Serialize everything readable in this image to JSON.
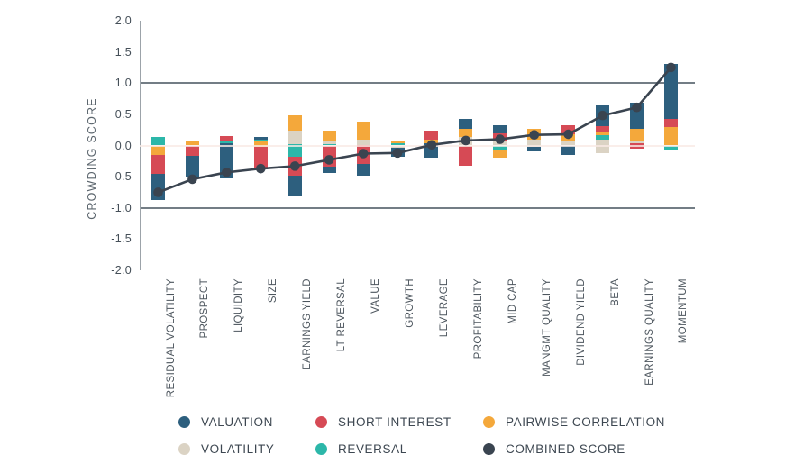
{
  "chart_data": {
    "type": "bar",
    "stacked": true,
    "title": "",
    "ylabel": "CROWDING SCORE",
    "ylim": [
      -2.0,
      2.0
    ],
    "grid_values": [
      1.0,
      -1.0
    ],
    "zero_value": 0,
    "yticks": [
      {
        "label": "2.0",
        "value": 2.0
      },
      {
        "label": "1.5",
        "value": 1.5
      },
      {
        "label": "1.0",
        "value": 1.0
      },
      {
        "label": "0.5",
        "value": 0.5
      },
      {
        "label": "0.0",
        "value": 0.0
      },
      {
        "label": "-0.5",
        "value": -0.5
      },
      {
        "label": "-1.0",
        "value": -1.0
      },
      {
        "label": "-1.5",
        "value": -1.5
      },
      {
        "label": "-2.0",
        "value": -2.0
      }
    ],
    "categories": [
      "RESIDUAL VOLATILITY",
      "PROSPECT",
      "LIQUIDITY",
      "SIZE",
      "EARNINGS YIELD",
      "LT REVERSAL",
      "VALUE",
      "GROWTH",
      "LEVERAGE",
      "PROFITABILITY",
      "MID CAP",
      "MANGMT QUALITY",
      "DIVIDEND YIELD",
      "BETA",
      "EARNINGS QUALITY",
      "MOMENTUM"
    ],
    "colors": {
      "valuation": "#2D5F7E",
      "short_interest": "#D64A55",
      "pairwise_correlation": "#F4A83B",
      "volatility": "#DBD3C4",
      "reversal": "#2CB7A9",
      "combined_score": "#3A4450"
    },
    "legend": [
      {
        "series": "valuation",
        "label": "VALUATION"
      },
      {
        "series": "short_interest",
        "label": "SHORT INTEREST"
      },
      {
        "series": "pairwise_correlation",
        "label": "PAIRWISE CORRELATION"
      },
      {
        "series": "volatility",
        "label": "VOLATILITY"
      },
      {
        "series": "reversal",
        "label": "REVERSAL"
      },
      {
        "series": "combined_score",
        "label": "COMBINED SCORE"
      }
    ],
    "bars": [
      {
        "category": "RESIDUAL VOLATILITY",
        "combined": -0.75,
        "segments": [
          [
            "valuation",
            -0.88,
            -0.46
          ],
          [
            "short_interest",
            -0.46,
            -0.15
          ],
          [
            "pairwise_correlation",
            -0.15,
            0.0
          ],
          [
            "reversal",
            0.0,
            0.14
          ]
        ]
      },
      {
        "category": "PROSPECT",
        "combined": -0.54,
        "segments": [
          [
            "valuation",
            -0.51,
            -0.17
          ],
          [
            "short_interest",
            -0.17,
            0.0
          ],
          [
            "pairwise_correlation",
            0.0,
            0.06
          ]
        ]
      },
      {
        "category": "LIQUIDITY",
        "combined": -0.43,
        "segments": [
          [
            "valuation",
            -0.52,
            0.03
          ],
          [
            "reversal",
            0.03,
            0.07
          ],
          [
            "short_interest",
            0.07,
            0.15
          ]
        ]
      },
      {
        "category": "SIZE",
        "combined": -0.37,
        "segments": [
          [
            "short_interest",
            -0.38,
            -0.02
          ],
          [
            "pairwise_correlation",
            -0.02,
            0.06
          ],
          [
            "reversal",
            0.06,
            0.09
          ],
          [
            "valuation",
            0.09,
            0.13
          ]
        ]
      },
      {
        "category": "EARNINGS YIELD",
        "combined": -0.33,
        "segments": [
          [
            "valuation",
            -0.8,
            -0.48
          ],
          [
            "short_interest",
            -0.48,
            -0.18
          ],
          [
            "reversal",
            -0.18,
            0.02
          ],
          [
            "volatility",
            0.02,
            0.24
          ],
          [
            "pairwise_correlation",
            0.24,
            0.48
          ]
        ]
      },
      {
        "category": "LT REVERSAL",
        "combined": -0.23,
        "segments": [
          [
            "valuation",
            -0.44,
            -0.34
          ],
          [
            "short_interest",
            -0.34,
            0.0
          ],
          [
            "reversal",
            0.0,
            0.02
          ],
          [
            "volatility",
            0.02,
            0.06
          ],
          [
            "pairwise_correlation",
            0.06,
            0.24
          ]
        ]
      },
      {
        "category": "VALUE",
        "combined": -0.13,
        "segments": [
          [
            "valuation",
            -0.48,
            -0.29
          ],
          [
            "short_interest",
            -0.29,
            0.01
          ],
          [
            "volatility",
            0.01,
            0.09
          ],
          [
            "pairwise_correlation",
            0.09,
            0.38
          ]
        ]
      },
      {
        "category": "GROWTH",
        "combined": -0.12,
        "segments": [
          [
            "valuation",
            -0.18,
            -0.04
          ],
          [
            "volatility",
            -0.04,
            0.0
          ],
          [
            "reversal",
            0.0,
            0.04
          ],
          [
            "pairwise_correlation",
            0.04,
            0.08
          ]
        ]
      },
      {
        "category": "LEVERAGE",
        "combined": 0.01,
        "segments": [
          [
            "valuation",
            -0.2,
            0.04
          ],
          [
            "pairwise_correlation",
            0.04,
            0.09
          ],
          [
            "short_interest",
            0.09,
            0.24
          ]
        ]
      },
      {
        "category": "PROFITABILITY",
        "combined": 0.08,
        "segments": [
          [
            "short_interest",
            -0.33,
            0.0
          ],
          [
            "volatility",
            0.0,
            0.14
          ],
          [
            "pairwise_correlation",
            0.14,
            0.27
          ],
          [
            "valuation",
            0.27,
            0.42
          ]
        ]
      },
      {
        "category": "MID CAP",
        "combined": 0.1,
        "segments": [
          [
            "pairwise_correlation",
            -0.2,
            -0.07
          ],
          [
            "reversal",
            -0.07,
            0.0
          ],
          [
            "volatility",
            0.0,
            0.06
          ],
          [
            "short_interest",
            0.06,
            0.19
          ],
          [
            "valuation",
            0.19,
            0.33
          ]
        ]
      },
      {
        "category": "MANGMT QUALITY",
        "combined": 0.17,
        "segments": [
          [
            "valuation",
            -0.1,
            -0.02
          ],
          [
            "volatility",
            -0.02,
            0.09
          ],
          [
            "pairwise_correlation",
            0.09,
            0.26
          ]
        ]
      },
      {
        "category": "DIVIDEND YIELD",
        "combined": 0.18,
        "segments": [
          [
            "valuation",
            -0.15,
            0.0
          ],
          [
            "volatility",
            0.0,
            0.07
          ],
          [
            "pairwise_correlation",
            0.07,
            0.18
          ],
          [
            "short_interest",
            0.18,
            0.33
          ]
        ]
      },
      {
        "category": "BETA",
        "combined": 0.48,
        "segments": [
          [
            "volatility",
            -0.12,
            0.09
          ],
          [
            "reversal",
            0.09,
            0.16
          ],
          [
            "pairwise_correlation",
            0.16,
            0.22
          ],
          [
            "short_interest",
            0.22,
            0.31
          ],
          [
            "valuation",
            0.31,
            0.65
          ]
        ]
      },
      {
        "category": "EARNINGS QUALITY",
        "combined": 0.61,
        "segments": [
          [
            "short_interest",
            -0.05,
            0.03
          ],
          [
            "volatility",
            0.03,
            0.08
          ],
          [
            "pairwise_correlation",
            0.08,
            0.26
          ],
          [
            "valuation",
            0.26,
            0.68
          ]
        ]
      },
      {
        "category": "MOMENTUM",
        "combined": 1.25,
        "segments": [
          [
            "reversal",
            -0.07,
            0.0
          ],
          [
            "pairwise_correlation",
            0.0,
            0.3
          ],
          [
            "short_interest",
            0.3,
            0.42
          ],
          [
            "valuation",
            0.42,
            1.3
          ]
        ]
      }
    ]
  }
}
